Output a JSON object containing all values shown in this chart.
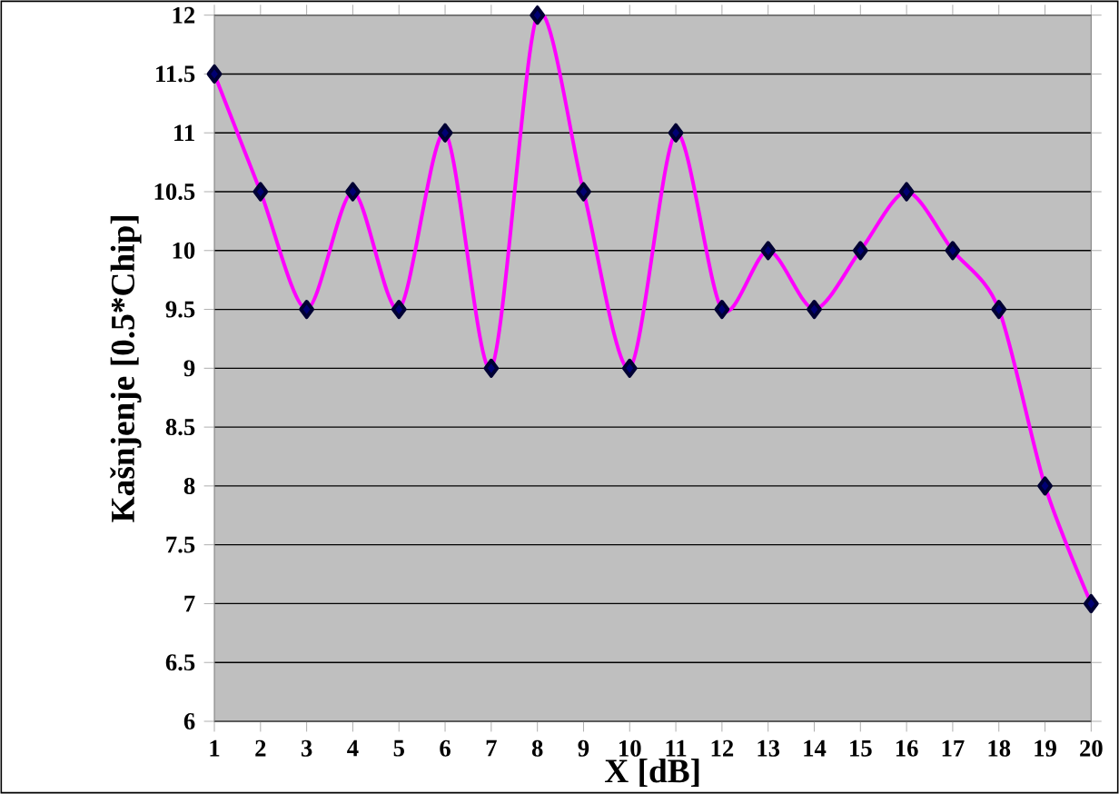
{
  "chart_data": {
    "type": "line",
    "xlabel": "X [dB]",
    "ylabel": "Kašnjenje [0.5*Chip]",
    "categories": [
      "1",
      "2",
      "3",
      "4",
      "5",
      "6",
      "7",
      "8",
      "9",
      "10",
      "11",
      "12",
      "13",
      "14",
      "15",
      "16",
      "17",
      "18",
      "19",
      "20"
    ],
    "series": [
      {
        "color": "#ff00ff",
        "values": [
          11.5,
          10.5,
          9.5,
          10.5,
          9.5,
          11,
          9,
          12,
          10.5,
          9,
          11,
          9.5,
          10,
          9.5,
          10,
          10.5,
          10,
          9.5,
          8,
          7
        ]
      }
    ],
    "ylim": [
      6,
      12
    ],
    "yticks": [
      6,
      6.5,
      7,
      7.5,
      8,
      8.5,
      9,
      9.5,
      10,
      10.5,
      11,
      11.5,
      12
    ],
    "grid": "y",
    "marker": "diamond",
    "line_style": "solid"
  }
}
